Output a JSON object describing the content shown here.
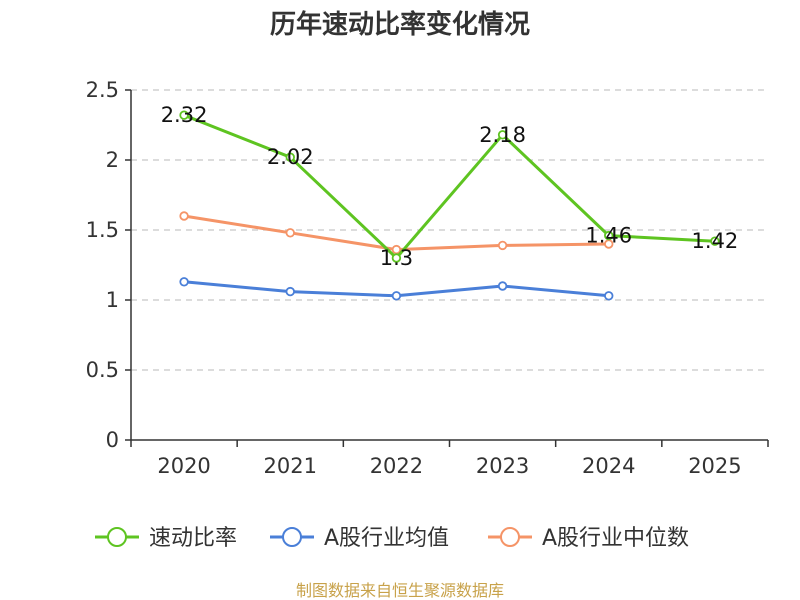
{
  "chart_data": {
    "type": "line",
    "title": "历年速动比率变化情况",
    "categories": [
      "2020",
      "2021",
      "2022",
      "2023",
      "2024",
      "2025"
    ],
    "ylim": [
      0,
      2.5
    ],
    "yticks": [
      "0",
      "0.5",
      "1",
      "1.5",
      "2",
      "2.5"
    ],
    "grid": true,
    "legend_position": "bottom",
    "series": [
      {
        "name": "速动比率",
        "color": "#5ec421",
        "values": [
          2.32,
          2.02,
          1.3,
          2.18,
          1.46,
          1.42
        ],
        "labels": [
          "2.32",
          "2.02",
          "1.3",
          "2.18",
          "1.46",
          "1.42"
        ]
      },
      {
        "name": "A股行业均值",
        "color": "#4a7fd8",
        "values": [
          1.13,
          1.06,
          1.03,
          1.1,
          1.03,
          null
        ]
      },
      {
        "name": "A股行业中位数",
        "color": "#f59467",
        "values": [
          1.6,
          1.48,
          1.36,
          1.39,
          1.4,
          null
        ]
      }
    ],
    "source": "制图数据来自恒生聚源数据库"
  }
}
